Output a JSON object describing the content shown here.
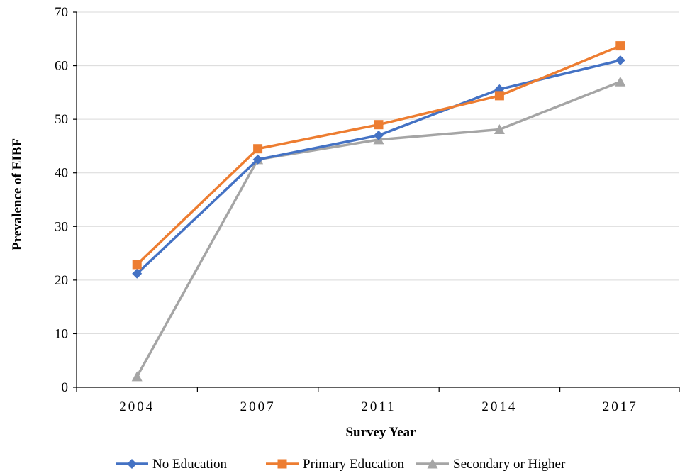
{
  "chart_data": {
    "type": "line",
    "title": "",
    "xlabel": "Survey Year",
    "ylabel": "Prevalence of EIBF",
    "categories": [
      "2004",
      "2007",
      "2011",
      "2014",
      "2017"
    ],
    "ylim": [
      0,
      70
    ],
    "yticks": [
      0,
      10,
      20,
      30,
      40,
      50,
      60,
      70
    ],
    "grid": "horizontal",
    "legend": "bottom",
    "series": [
      {
        "name": "No Education",
        "color": "#4472C4",
        "marker": "diamond",
        "values": [
          21.2,
          42.5,
          47.0,
          55.6,
          61.0
        ]
      },
      {
        "name": "Primary Education",
        "color": "#ED7D31",
        "marker": "square",
        "values": [
          22.9,
          44.5,
          49.0,
          54.4,
          63.7
        ]
      },
      {
        "name": "Secondary or Higher",
        "color": "#A5A5A5",
        "marker": "triangle",
        "values": [
          2.0,
          42.5,
          46.2,
          48.1,
          57.0
        ]
      }
    ]
  }
}
